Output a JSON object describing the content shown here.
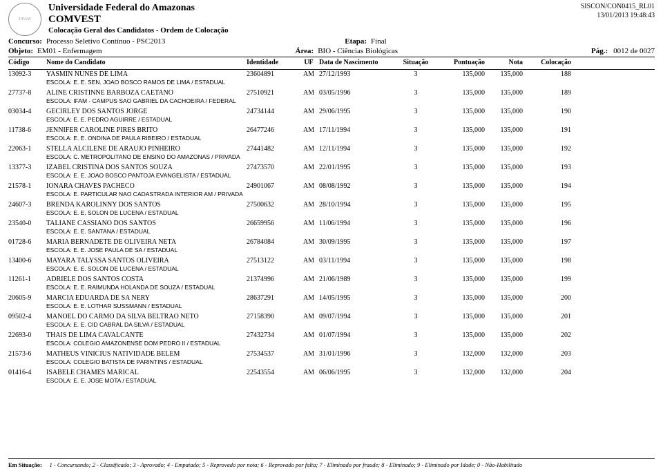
{
  "header": {
    "university": "Universidade Federal do Amazonas",
    "department": "COMVEST",
    "subtitle": "Colocação Geral dos Candidatos  -  Ordem de Colocação",
    "report_id": "SISCON/CON0415_RL01",
    "timestamp": "13/01/2013 19:48:43"
  },
  "meta": {
    "concurso_label": "Concurso:",
    "concurso_value": "Processo Seletivo Contínuo - PSC2013",
    "etapa_label": "Etapa:",
    "etapa_value": "Final",
    "objeto_label": "Objeto:",
    "objeto_value": "EM01 - Enfermagem",
    "area_label": "Área:",
    "area_value": "BIO - Ciências Biológicas",
    "page_label": "Pág.:",
    "page_value": "0012 de 0027"
  },
  "columns": {
    "codigo": "Código",
    "nome": "Nome do Candidato",
    "identidade": "Identidade",
    "uf": "UF",
    "data": "Data de Nascimento",
    "situacao": "Situação",
    "pontuacao": "Pontuação",
    "nota": "Nota",
    "colocacao": "Colocação"
  },
  "rows": [
    {
      "codigo": "13092-3",
      "nome": "YASMIN NUNES DE LIMA",
      "identidade": "23604891",
      "uf": "AM",
      "data": "27/12/1993",
      "sit": "3",
      "pont": "135,000",
      "nota": "135,000",
      "col": "188",
      "escola": "ESCOLA: E. E. SEN. JOAO BOSCO RAMOS DE LIMA / ESTADUAL"
    },
    {
      "codigo": "27737-8",
      "nome": "ALINE CRISTINNE BARBOZA CAETANO",
      "identidade": "27510921",
      "uf": "AM",
      "data": "03/05/1996",
      "sit": "3",
      "pont": "135,000",
      "nota": "135,000",
      "col": "189",
      "escola": "ESCOLA: IFAM - CAMPUS SAO GABRIEL DA CACHOEIRA / FEDERAL"
    },
    {
      "codigo": "03034-4",
      "nome": "GECIRLEY DOS SANTOS JORGE",
      "identidade": "24734144",
      "uf": "AM",
      "data": "29/06/1995",
      "sit": "3",
      "pont": "135,000",
      "nota": "135,000",
      "col": "190",
      "escola": "ESCOLA: E. E. PEDRO AGUIRRE / ESTADUAL"
    },
    {
      "codigo": "11738-6",
      "nome": "JENNIFER CAROLINE PIRES BRITO",
      "identidade": "26477246",
      "uf": "AM",
      "data": "17/11/1994",
      "sit": "3",
      "pont": "135,000",
      "nota": "135,000",
      "col": "191",
      "escola": "ESCOLA: E. E. ONDINA DE PAULA RIBEIRO / ESTADUAL"
    },
    {
      "codigo": "22063-1",
      "nome": "STELLA ALCILENE DE ARAUJO PINHEIRO",
      "identidade": "27441482",
      "uf": "AM",
      "data": "12/11/1994",
      "sit": "3",
      "pont": "135,000",
      "nota": "135,000",
      "col": "192",
      "escola": "ESCOLA: C. METROPOLITANO DE ENSINO DO AMAZONAS / PRIVADA"
    },
    {
      "codigo": "13377-3",
      "nome": "IZABEL CRISTINA DOS SANTOS SOUZA",
      "identidade": "27473570",
      "uf": "AM",
      "data": "22/01/1995",
      "sit": "3",
      "pont": "135,000",
      "nota": "135,000",
      "col": "193",
      "escola": "ESCOLA: E. E. JOAO BOSCO PANTOJA EVANGELISTA / ESTADUAL"
    },
    {
      "codigo": "21578-1",
      "nome": "IONARA CHAVES PACHECO",
      "identidade": "24901067",
      "uf": "AM",
      "data": "08/08/1992",
      "sit": "3",
      "pont": "135,000",
      "nota": "135,000",
      "col": "194",
      "escola": "ESCOLA: E. PARTICULAR NAO CADASTRADA INTERIOR AM / PRIVADA"
    },
    {
      "codigo": "24607-3",
      "nome": "BRENDA KAROLINNY DOS SANTOS",
      "identidade": "27500632",
      "uf": "AM",
      "data": "28/10/1994",
      "sit": "3",
      "pont": "135,000",
      "nota": "135,000",
      "col": "195",
      "escola": "ESCOLA: E. E. SOLON DE LUCENA / ESTADUAL"
    },
    {
      "codigo": "23540-0",
      "nome": "TALIANE CASSIANO DOS SANTOS",
      "identidade": "26659956",
      "uf": "AM",
      "data": "11/06/1994",
      "sit": "3",
      "pont": "135,000",
      "nota": "135,000",
      "col": "196",
      "escola": "ESCOLA: E. E. SANTANA / ESTADUAL"
    },
    {
      "codigo": "01728-6",
      "nome": "MARIA BERNADETE DE OLIVEIRA NETA",
      "identidade": "26784084",
      "uf": "AM",
      "data": "30/09/1995",
      "sit": "3",
      "pont": "135,000",
      "nota": "135,000",
      "col": "197",
      "escola": "ESCOLA: E. E. JOSE PAULA DE SA / ESTADUAL"
    },
    {
      "codigo": "13400-6",
      "nome": "MAYARA TALYSSA SANTOS OLIVEIRA",
      "identidade": "27513122",
      "uf": "AM",
      "data": "03/11/1994",
      "sit": "3",
      "pont": "135,000",
      "nota": "135,000",
      "col": "198",
      "escola": "ESCOLA: E. E. SOLON DE LUCENA / ESTADUAL"
    },
    {
      "codigo": "11261-1",
      "nome": "ADRIELE DOS SANTOS COSTA",
      "identidade": "21374996",
      "uf": "AM",
      "data": "21/06/1989",
      "sit": "3",
      "pont": "135,000",
      "nota": "135,000",
      "col": "199",
      "escola": "ESCOLA: E. E. RAIMUNDA HOLANDA DE SOUZA / ESTADUAL"
    },
    {
      "codigo": "20605-9",
      "nome": "MARCIA EDUARDA DE SA NERY",
      "identidade": "28637291",
      "uf": "AM",
      "data": "14/05/1995",
      "sit": "3",
      "pont": "135,000",
      "nota": "135,000",
      "col": "200",
      "escola": "ESCOLA: E. E. LOTHAR SUSSMANN / ESTADUAL"
    },
    {
      "codigo": "09502-4",
      "nome": "MANOEL DO CARMO DA SILVA BELTRAO NETO",
      "identidade": "27158390",
      "uf": "AM",
      "data": "09/07/1994",
      "sit": "3",
      "pont": "135,000",
      "nota": "135,000",
      "col": "201",
      "escola": "ESCOLA: E. E. CID CABRAL DA SILVA / ESTADUAL"
    },
    {
      "codigo": "22693-0",
      "nome": "THAIS DE LIMA CAVALCANTE",
      "identidade": "27432734",
      "uf": "AM",
      "data": "01/07/1994",
      "sit": "3",
      "pont": "135,000",
      "nota": "135,000",
      "col": "202",
      "escola": "ESCOLA: COLEGIO AMAZONENSE DOM PEDRO II / ESTADUAL"
    },
    {
      "codigo": "21573-6",
      "nome": "MATHEUS VINICIUS NATIVIDADE BELEM",
      "identidade": "27534537",
      "uf": "AM",
      "data": "31/01/1996",
      "sit": "3",
      "pont": "132,000",
      "nota": "132,000",
      "col": "203",
      "escola": "ESCOLA: COLEGIO BATISTA DE PARINTINS / ESTADUAL"
    },
    {
      "codigo": "01416-4",
      "nome": "ISABELE CHAMES MARICAL",
      "identidade": "22543554",
      "uf": "AM",
      "data": "06/06/1995",
      "sit": "3",
      "pont": "132,000",
      "nota": "132,000",
      "col": "204",
      "escola": "ESCOLA: E. E. JOSE MOTA / ESTADUAL"
    }
  ],
  "footer": {
    "label": "Em Situação:",
    "text": "1 - Concursando; 2 - Classificado; 3 - Aprovado; 4 - Empatado; 5 - Reprovado por nota; 6 - Reprovado por falta; 7 - Eliminado por fraude; 8 - Eliminado; 9 - Eliminado por Idade; 0 - Não-Habilitado"
  }
}
